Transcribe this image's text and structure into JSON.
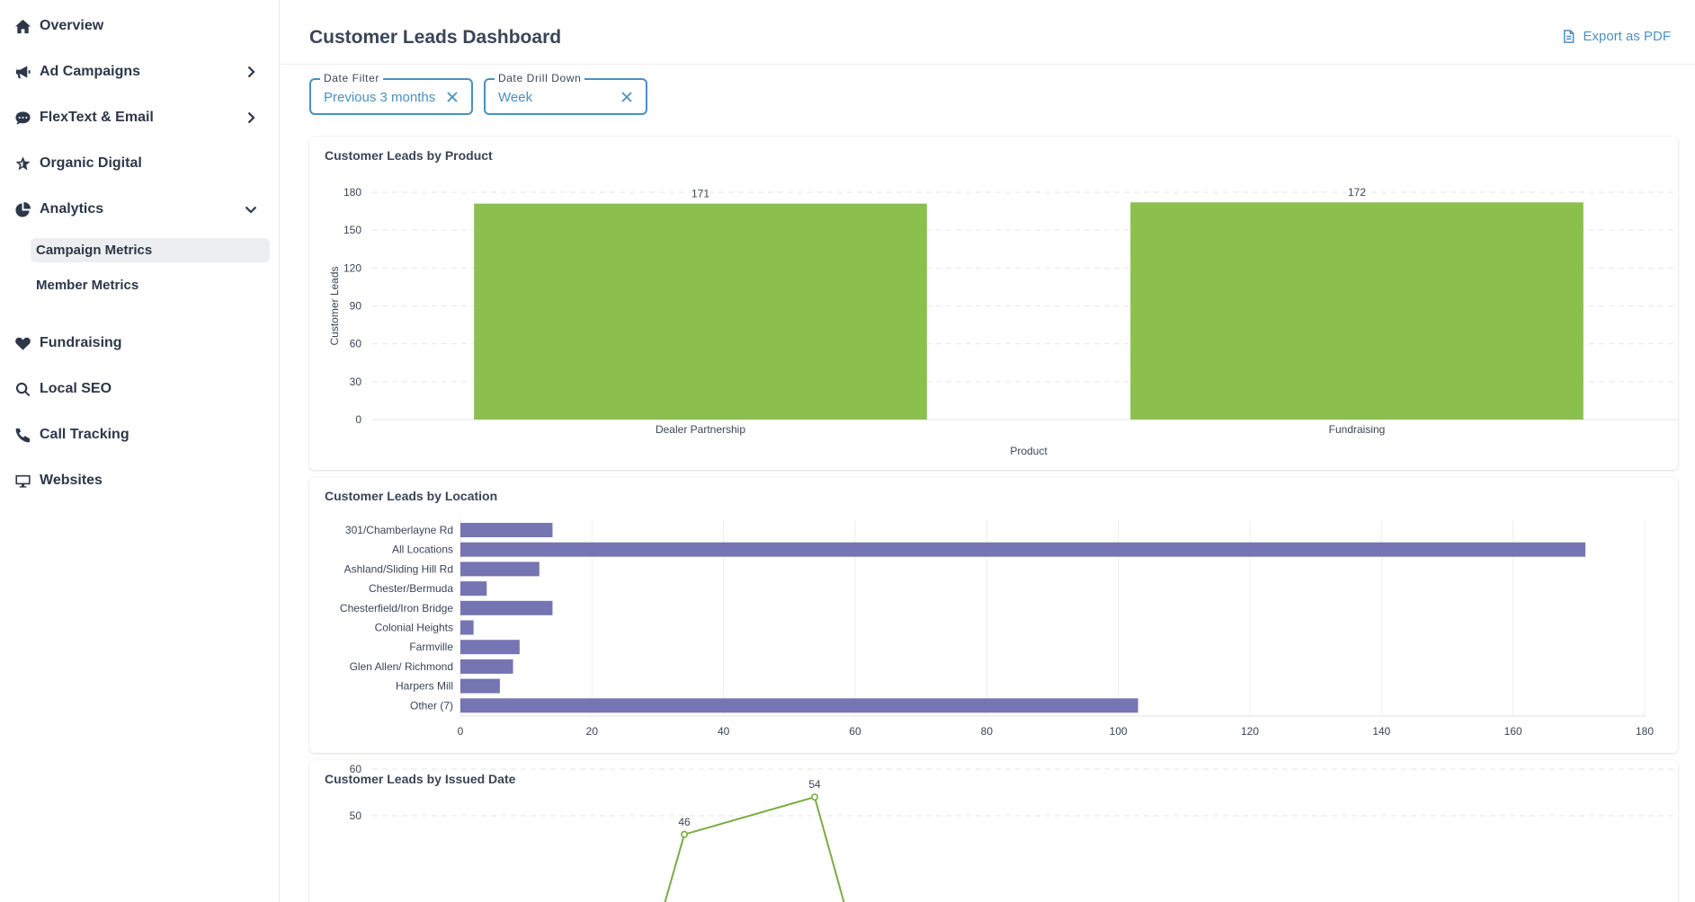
{
  "sidebar": {
    "items": [
      {
        "label": "Overview",
        "icon": "home-icon"
      },
      {
        "label": "Ad Campaigns",
        "icon": "megaphone-icon"
      },
      {
        "label": "FlexText & Email",
        "icon": "chat-icon"
      },
      {
        "label": "Organic Digital",
        "icon": "star-icon"
      },
      {
        "label": "Analytics",
        "icon": "pie-chart-icon"
      },
      {
        "label": "Fundraising",
        "icon": "heart-icon"
      },
      {
        "label": "Local SEO",
        "icon": "search-icon"
      },
      {
        "label": "Call Tracking",
        "icon": "phone-icon"
      },
      {
        "label": "Websites",
        "icon": "monitor-icon"
      }
    ],
    "analytics_subitems": [
      {
        "label": "Campaign Metrics",
        "active": true
      },
      {
        "label": "Member Metrics",
        "active": false
      }
    ]
  },
  "header": {
    "title": "Customer Leads Dashboard",
    "export_label": "Export as PDF"
  },
  "filters": {
    "date_filter": {
      "legend": "Date Filter",
      "value": "Previous 3 months"
    },
    "date_drill": {
      "legend": "Date Drill Down",
      "value": "Week"
    }
  },
  "colors": {
    "accent": "#4a90c2",
    "bar_green": "#8bc04f",
    "bar_purple": "#7475b2",
    "line_green": "#7aab45"
  },
  "chart_data": [
    {
      "type": "bar",
      "title": "Customer Leads by Product",
      "categories": [
        "Dealer Partnership",
        "Fundraising"
      ],
      "values": [
        171,
        172
      ],
      "xlabel": "Product",
      "ylabel": "Customer Leads",
      "ylim": [
        0,
        180
      ],
      "yticks": [
        "0",
        "30",
        "60",
        "90",
        "120",
        "150",
        "180"
      ],
      "grid": true
    },
    {
      "type": "bar",
      "orientation": "horizontal",
      "title": "Customer Leads by Location",
      "categories": [
        "301/Chamberlayne Rd",
        "All Locations",
        "Ashland/Sliding Hill Rd",
        "Chester/Bermuda",
        "Chesterfield/Iron Bridge",
        "Colonial Heights",
        "Farmville",
        "Glen Allen/ Richmond",
        "Harpers Mill",
        "Other (7)"
      ],
      "values": [
        14,
        171,
        12,
        4,
        14,
        2,
        9,
        8,
        6,
        103
      ],
      "xlim": [
        0,
        180
      ],
      "xticks": [
        "0",
        "20",
        "40",
        "60",
        "80",
        "100",
        "120",
        "140",
        "160",
        "180"
      ],
      "grid": true
    },
    {
      "type": "line",
      "title": "Customer Leads by Issued Date",
      "yticks": [
        "50",
        "60"
      ],
      "points": [
        {
          "label": "46",
          "value": 46
        },
        {
          "label": "54",
          "value": 54
        }
      ]
    }
  ]
}
